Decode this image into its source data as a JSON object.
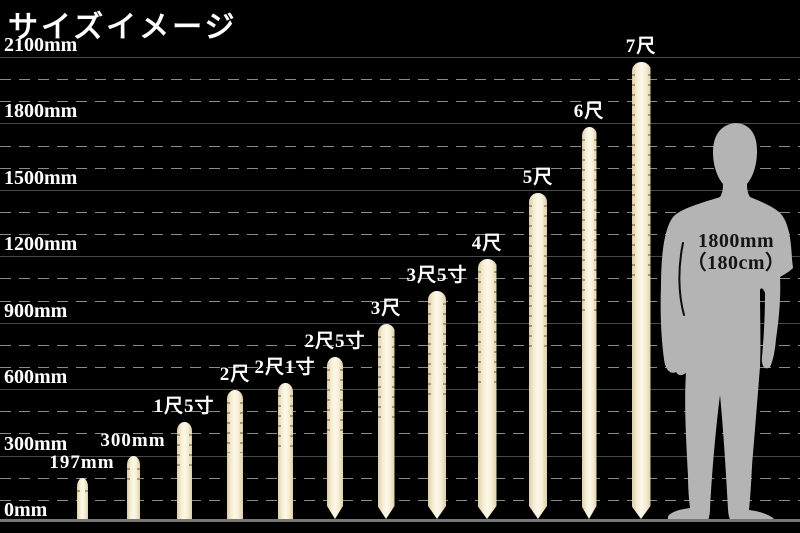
{
  "title": "サイズイメージ",
  "chart_data": {
    "type": "bar",
    "title": "サイズイメージ",
    "unit": "mm",
    "ylim": [
      0,
      2300
    ],
    "grid": true,
    "legend_position": "none",
    "axis_ticks": [
      {
        "mm": 0,
        "label": "0mm"
      },
      {
        "mm": 300,
        "label": "300mm"
      },
      {
        "mm": 600,
        "label": "600mm"
      },
      {
        "mm": 900,
        "label": "900mm"
      },
      {
        "mm": 1200,
        "label": "1200mm"
      },
      {
        "mm": 1500,
        "label": "1500mm"
      },
      {
        "mm": 1800,
        "label": "1800mm"
      },
      {
        "mm": 2100,
        "label": "2100mm"
      }
    ],
    "minor_gridline_interval_mm": 100,
    "bars": [
      {
        "label": "197mm",
        "length_mm": 197,
        "pointed_tip": false
      },
      {
        "label": "300mm",
        "length_mm": 300,
        "pointed_tip": false
      },
      {
        "label": "1尺5寸",
        "length_mm": 455,
        "pointed_tip": false
      },
      {
        "label": "2尺",
        "length_mm": 606,
        "pointed_tip": false
      },
      {
        "label": "2尺1寸",
        "length_mm": 636,
        "pointed_tip": false
      },
      {
        "label": "2尺5寸",
        "length_mm": 758,
        "pointed_tip": true
      },
      {
        "label": "3尺",
        "length_mm": 909,
        "pointed_tip": true
      },
      {
        "label": "3尺5寸",
        "length_mm": 1061,
        "pointed_tip": true
      },
      {
        "label": "4尺",
        "length_mm": 1212,
        "pointed_tip": true
      },
      {
        "label": "5尺",
        "length_mm": 1515,
        "pointed_tip": true
      },
      {
        "label": "6尺",
        "length_mm": 1818,
        "pointed_tip": true
      },
      {
        "label": "7尺",
        "length_mm": 2121,
        "pointed_tip": true
      }
    ],
    "reference_figure": {
      "type": "human-silhouette",
      "height_mm": 1800,
      "label_line1": "1800mm",
      "label_line2": "（180cm）"
    }
  },
  "colors": {
    "background": "#000000",
    "text": "#ffffff",
    "bar_fill": "#f6eed6",
    "bar_edge": "#ddcfa6",
    "grid_major": "#454a4c",
    "grid_minor": "#8b8b8b",
    "baseline": "#787878",
    "figure_fill": "#b4b4b4",
    "figure_text": "#151515"
  }
}
